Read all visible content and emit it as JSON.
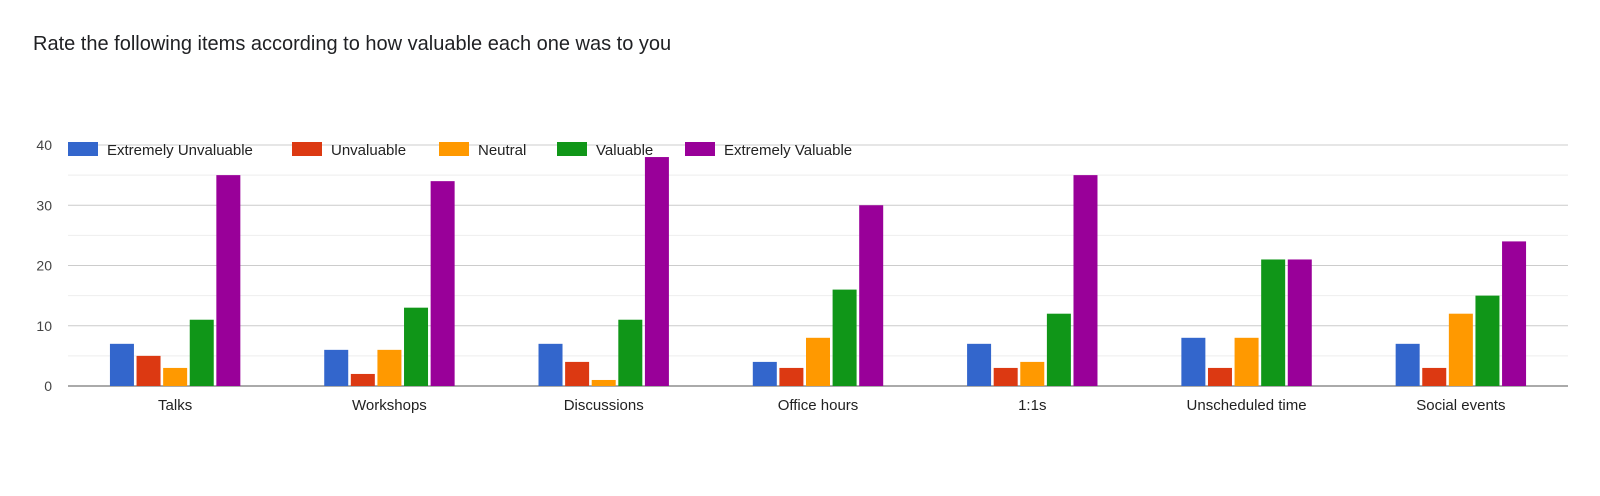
{
  "chart_data": {
    "type": "bar",
    "title": "Rate the following items according to how valuable each one was to you",
    "xlabel": "",
    "ylabel": "",
    "ylim": [
      0,
      40
    ],
    "yticks": [
      0,
      10,
      20,
      30,
      40
    ],
    "grid": true,
    "legend_position": "top-left",
    "categories": [
      "Talks",
      "Workshops",
      "Discussions",
      "Office hours",
      "1:1s",
      "Unscheduled time",
      "Social events"
    ],
    "series": [
      {
        "name": "Extremely Unvaluable",
        "color": "#3366cc",
        "values": [
          7,
          6,
          7,
          4,
          7,
          8,
          7
        ]
      },
      {
        "name": "Unvaluable",
        "color": "#dc3912",
        "values": [
          5,
          2,
          4,
          3,
          3,
          3,
          3
        ]
      },
      {
        "name": "Neutral",
        "color": "#ff9900",
        "values": [
          3,
          6,
          1,
          8,
          4,
          8,
          12
        ]
      },
      {
        "name": "Valuable",
        "color": "#109618",
        "values": [
          11,
          13,
          11,
          16,
          12,
          21,
          15
        ]
      },
      {
        "name": "Extremely Valuable",
        "color": "#990099",
        "values": [
          35,
          34,
          38,
          30,
          35,
          21,
          24
        ]
      }
    ]
  }
}
